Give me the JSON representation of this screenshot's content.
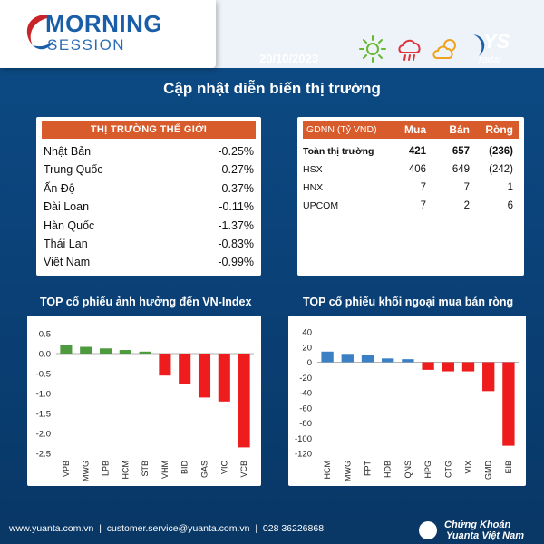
{
  "header": {
    "brand_line1": "MORNING",
    "brand_line2": "SESSION",
    "date": "20/10/2023",
    "weather_icons": [
      "sun-icon",
      "rain-cloud-icon",
      "partly-cloudy-icon"
    ],
    "radar_brand": "YS",
    "radar_sub": "radar",
    "headline": "Cập nhật diễn biến thị trường",
    "accent_color": "#d85b2c"
  },
  "world_markets": {
    "title": "THỊ TRƯỜNG THẾ GIỚI",
    "rows": [
      {
        "name": "Nhật Bản",
        "value": "-0.25%"
      },
      {
        "name": "Trung Quốc",
        "value": "-0.27%"
      },
      {
        "name": "Ấn Độ",
        "value": "-0.37%"
      },
      {
        "name": "Đài Loan",
        "value": "-0.11%"
      },
      {
        "name": "Hàn Quốc",
        "value": "-1.37%"
      },
      {
        "name": "Thái Lan",
        "value": "-0.83%"
      },
      {
        "name": "Việt Nam",
        "value": "-0.99%"
      }
    ]
  },
  "foreign_trading": {
    "headers": [
      "GDNN (Tỷ VND)",
      "Mua",
      "Bán",
      "Ròng"
    ],
    "rows": [
      {
        "name": "Toàn thị trường",
        "buy": "421",
        "sell": "657",
        "net": "(236)",
        "bold": true
      },
      {
        "name": "HSX",
        "buy": "406",
        "sell": "649",
        "net": "(242)",
        "bold": false
      },
      {
        "name": "HNX",
        "buy": "7",
        "sell": "7",
        "net": "1",
        "bold": false
      },
      {
        "name": "UPCOM",
        "buy": "7",
        "sell": "2",
        "net": "6",
        "bold": false
      }
    ]
  },
  "chart_titles": {
    "left": "TOP cổ phiếu ảnh hưởng đến VN-Index",
    "right": "TOP cổ phiếu khối ngoại mua bán ròng"
  },
  "chart_data": [
    {
      "type": "bar",
      "title": "TOP cổ phiếu ảnh hưởng đến VN-Index",
      "categories": [
        "VPB",
        "MWG",
        "LPB",
        "HCM",
        "STB",
        "VHM",
        "BID",
        "GAS",
        "VIC",
        "VCB"
      ],
      "values": [
        0.22,
        0.17,
        0.13,
        0.09,
        0.05,
        -0.55,
        -0.75,
        -1.1,
        -1.2,
        -2.35
      ],
      "ylim": [
        -2.5,
        0.5
      ],
      "yticks": [
        "0.5",
        "0.0",
        "-0.5",
        "-1.0",
        "-1.5",
        "-2.0",
        "-2.5"
      ],
      "positive_color": "#4e9a3e",
      "negative_color": "#ee1c1c"
    },
    {
      "type": "bar",
      "title": "TOP cổ phiếu khối ngoại mua bán ròng",
      "categories": [
        "HCM",
        "MWG",
        "FPT",
        "HDB",
        "QNS",
        "HPG",
        "CTG",
        "VIX",
        "GMD",
        "EIB"
      ],
      "values": [
        14,
        11,
        9,
        5,
        4,
        -10,
        -12,
        -12,
        -38,
        -110
      ],
      "ylim": [
        -120,
        40
      ],
      "yticks": [
        "40",
        "20",
        "0",
        "-20",
        "-40",
        "-60",
        "-80",
        "-100",
        "-120"
      ],
      "positive_color": "#3b7fc4",
      "negative_color": "#ee1c1c"
    }
  ],
  "footer": {
    "contact": "www.yuanta.com.vn  |  customer.service@yuanta.com.vn  |  028 36226868",
    "brand_line1": "Chứng Khoán",
    "brand_line2": "Yuanta Việt Nam"
  }
}
